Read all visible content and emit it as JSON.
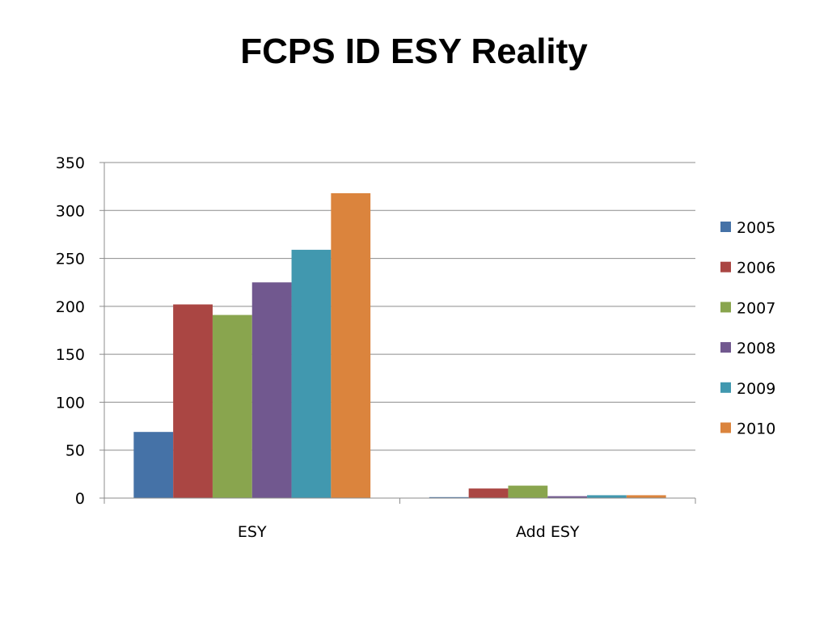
{
  "slide": {
    "title": "FCPS ID ESY Reality"
  },
  "chart_data": {
    "type": "bar",
    "title": "",
    "xlabel": "",
    "ylabel": "",
    "categories": [
      "ESY",
      "Add ESY"
    ],
    "ylim": [
      0,
      350
    ],
    "yticks": [
      0,
      50,
      100,
      150,
      200,
      250,
      300,
      350
    ],
    "grid": true,
    "legend_position": "right",
    "series": [
      {
        "name": "2005",
        "color": "#4572A7",
        "values": [
          69,
          1
        ]
      },
      {
        "name": "2006",
        "color": "#AA4643",
        "values": [
          202,
          10
        ]
      },
      {
        "name": "2007",
        "color": "#89A54E",
        "values": [
          191,
          13
        ]
      },
      {
        "name": "2008",
        "color": "#71588F",
        "values": [
          225,
          2
        ]
      },
      {
        "name": "2009",
        "color": "#4198AF",
        "values": [
          259,
          3
        ]
      },
      {
        "name": "2010",
        "color": "#DB843D",
        "values": [
          318,
          3
        ]
      }
    ]
  }
}
